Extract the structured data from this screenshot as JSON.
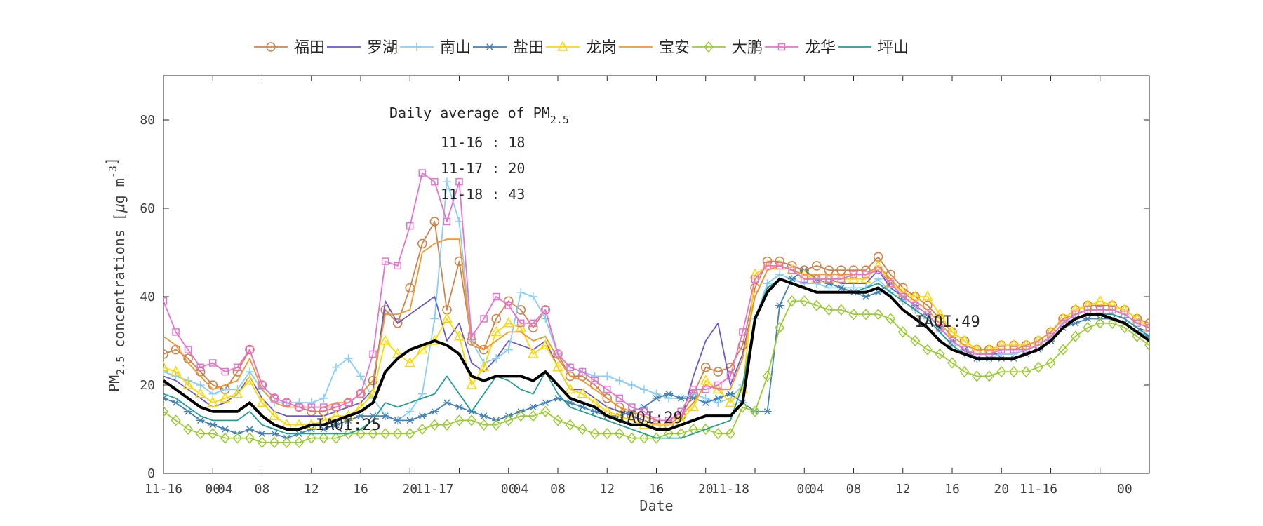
{
  "chart_data": {
    "type": "line",
    "x_tick_labels": [
      "11-16",
      "00",
      "04",
      "08",
      "12",
      "16",
      "20",
      "11-17",
      "00",
      "04",
      "08",
      "12",
      "16",
      "20",
      "11-18",
      "00",
      "04",
      "08",
      "12",
      "16",
      "20",
      "11-16",
      "00"
    ],
    "xlabel": "Date",
    "ylabel": "PM2.5 concentrations [μg m-3]",
    "ylabel_parts": {
      "pm": "PM",
      "sub": "2.5",
      "mid": " concentrations [",
      "mu": "μ",
      "unit": "g m",
      "sup": "-3",
      "close": "]"
    },
    "ylim": [
      0,
      90
    ],
    "xlim": [
      0,
      80
    ],
    "y_ticks": [
      0,
      20,
      40,
      60,
      80
    ],
    "annotations": {
      "title_prefix": "Daily average of PM",
      "title_sub": "2.5",
      "lines": [
        "11-16 : 18",
        "11-17 : 20",
        "11-18 : 43"
      ],
      "iaqi": [
        "IAQI:25",
        "IAQI:29",
        "IAQI:49"
      ]
    },
    "series": [
      {
        "name": "福田",
        "color": "#d0834a",
        "marker": "circle",
        "values": [
          27,
          28,
          26,
          23,
          20,
          19,
          23,
          28,
          20,
          17,
          16,
          15,
          14,
          14,
          15,
          16,
          18,
          21,
          37,
          34,
          42,
          52,
          57,
          37,
          48,
          30,
          28,
          35,
          39,
          37,
          33,
          37,
          27,
          22,
          22,
          20,
          17,
          15,
          13,
          12,
          11,
          11,
          13,
          18,
          24,
          23,
          24,
          29,
          42,
          48,
          48,
          47,
          46,
          47,
          46,
          46,
          46,
          46,
          49,
          45,
          42,
          40,
          38,
          35,
          32,
          30,
          28,
          28,
          29,
          29,
          29,
          30,
          32,
          35,
          37,
          38,
          38,
          38,
          37,
          35,
          34,
          36
        ]
      },
      {
        "name": "罗湖",
        "color": "#6a5acd",
        "marker": "none",
        "values": [
          22,
          21,
          19,
          17,
          15,
          16,
          18,
          22,
          17,
          14,
          13,
          13,
          13,
          13,
          14,
          15,
          16,
          19,
          39,
          34,
          36,
          38,
          40,
          30,
          34,
          25,
          23,
          26,
          30,
          29,
          28,
          30,
          24,
          19,
          19,
          17,
          15,
          14,
          13,
          12,
          11,
          11,
          12,
          22,
          30,
          34,
          20,
          27,
          40,
          46,
          47,
          46,
          44,
          44,
          44,
          43,
          43,
          43,
          46,
          42,
          40,
          38,
          36,
          33,
          30,
          28,
          27,
          27,
          27,
          27,
          28,
          29,
          31,
          34,
          35,
          36,
          36,
          36,
          35,
          33,
          32,
          33
        ]
      },
      {
        "name": "南山",
        "color": "#87cefa",
        "marker": "plus",
        "values": [
          23,
          22,
          21,
          20,
          18,
          19,
          19,
          23,
          19,
          16,
          16,
          16,
          16,
          17,
          24,
          26,
          22,
          17,
          13,
          12,
          14,
          18,
          35,
          66,
          57,
          30,
          25,
          26,
          28,
          41,
          40,
          35,
          27,
          24,
          23,
          22,
          22,
          21,
          20,
          19,
          18,
          17,
          17,
          18,
          17,
          16,
          17,
          20,
          35,
          43,
          45,
          44,
          43,
          43,
          42,
          42,
          42,
          42,
          44,
          41,
          39,
          37,
          35,
          32,
          29,
          27,
          26,
          26,
          27,
          27,
          28,
          29,
          31,
          34,
          36,
          37,
          37,
          37,
          36,
          34,
          33,
          34
        ]
      },
      {
        "name": "盐田",
        "color": "#4682b4",
        "marker": "asterisk",
        "values": [
          17,
          16,
          14,
          12,
          11,
          10,
          9,
          10,
          9,
          9,
          8,
          9,
          10,
          10,
          11,
          12,
          13,
          13,
          13,
          12,
          12,
          13,
          14,
          16,
          15,
          14,
          13,
          12,
          13,
          14,
          15,
          16,
          17,
          16,
          15,
          14,
          13,
          13,
          14,
          15,
          17,
          18,
          17,
          17,
          16,
          17,
          18,
          16,
          14,
          14,
          38,
          44,
          46,
          44,
          43,
          42,
          41,
          40,
          41,
          43,
          40,
          38,
          36,
          33,
          30,
          28,
          26,
          26,
          26,
          26,
          27,
          28,
          30,
          33,
          34,
          35,
          35,
          35,
          34,
          32,
          31,
          29
        ]
      },
      {
        "name": "龙岗",
        "color": "#ffd700",
        "marker": "triangle",
        "values": [
          24,
          23,
          20,
          18,
          16,
          17,
          18,
          21,
          16,
          13,
          11,
          11,
          11,
          12,
          13,
          13,
          15,
          18,
          30,
          27,
          25,
          28,
          30,
          35,
          31,
          20,
          24,
          32,
          34,
          33,
          27,
          29,
          24,
          19,
          18,
          16,
          14,
          13,
          12,
          11,
          11,
          11,
          12,
          15,
          21,
          19,
          16,
          19,
          45,
          47,
          47,
          46,
          45,
          44,
          44,
          44,
          44,
          44,
          47,
          43,
          41,
          40,
          40,
          36,
          32,
          30,
          28,
          28,
          29,
          29,
          29,
          30,
          32,
          35,
          37,
          38,
          39,
          38,
          37,
          35,
          33,
          33
        ]
      },
      {
        "name": "宝安",
        "color": "#f4962a",
        "marker": "none",
        "values": [
          31,
          29,
          25,
          22,
          19,
          20,
          21,
          26,
          19,
          16,
          15,
          15,
          15,
          15,
          16,
          16,
          18,
          21,
          36,
          36,
          37,
          50,
          52,
          53,
          53,
          29,
          28,
          30,
          32,
          32,
          30,
          31,
          26,
          22,
          21,
          19,
          17,
          15,
          14,
          13,
          12,
          12,
          13,
          16,
          20,
          19,
          19,
          26,
          40,
          46,
          47,
          46,
          45,
          45,
          45,
          45,
          45,
          45,
          47,
          44,
          41,
          39,
          37,
          34,
          31,
          29,
          28,
          28,
          28,
          28,
          29,
          30,
          32,
          35,
          36,
          37,
          37,
          37,
          36,
          34,
          33,
          34
        ]
      },
      {
        "name": "大鹏",
        "color": "#9acd32",
        "marker": "diamond",
        "values": [
          14,
          12,
          10,
          9,
          9,
          8,
          8,
          8,
          7,
          7,
          7,
          7,
          8,
          8,
          8,
          9,
          9,
          9,
          9,
          9,
          9,
          10,
          11,
          11,
          12,
          12,
          11,
          11,
          12,
          13,
          13,
          14,
          12,
          11,
          10,
          9,
          9,
          9,
          8,
          8,
          8,
          9,
          9,
          10,
          10,
          9,
          9,
          15,
          14,
          22,
          33,
          39,
          39,
          38,
          37,
          37,
          36,
          36,
          36,
          35,
          32,
          30,
          28,
          27,
          25,
          23,
          22,
          22,
          23,
          23,
          23,
          24,
          25,
          28,
          31,
          33,
          34,
          34,
          33,
          31,
          29,
          28
        ]
      },
      {
        "name": "龙华",
        "color": "#e872cf",
        "marker": "square",
        "values": [
          39,
          32,
          28,
          24,
          25,
          23,
          24,
          28,
          20,
          17,
          16,
          15,
          15,
          15,
          15,
          16,
          18,
          27,
          48,
          47,
          56,
          68,
          66,
          57,
          66,
          31,
          35,
          40,
          38,
          34,
          34,
          37,
          27,
          24,
          23,
          21,
          19,
          17,
          15,
          14,
          12,
          12,
          14,
          19,
          19,
          20,
          22,
          32,
          44,
          47,
          47,
          46,
          44,
          44,
          44,
          44,
          45,
          45,
          46,
          43,
          40,
          38,
          36,
          33,
          30,
          28,
          27,
          27,
          28,
          28,
          28,
          29,
          31,
          34,
          36,
          37,
          37,
          37,
          36,
          34,
          33,
          34
        ]
      },
      {
        "name": "坪山",
        "color": "#20a090",
        "marker": "none",
        "values": [
          18,
          17,
          15,
          13,
          12,
          12,
          12,
          14,
          11,
          10,
          9,
          9,
          9,
          9,
          9,
          9,
          10,
          12,
          16,
          15,
          16,
          17,
          18,
          22,
          18,
          14,
          18,
          22,
          21,
          19,
          18,
          23,
          18,
          15,
          14,
          13,
          12,
          11,
          10,
          9,
          8,
          8,
          8,
          9,
          10,
          11,
          12,
          20,
          35,
          42,
          44,
          43,
          42,
          41,
          41,
          41,
          41,
          42,
          43,
          41,
          39,
          37,
          35,
          32,
          29,
          27,
          26,
          26,
          26,
          26,
          27,
          28,
          30,
          33,
          35,
          36,
          36,
          36,
          35,
          33,
          31,
          29
        ]
      },
      {
        "name": "",
        "color": "#000000",
        "marker": "none",
        "values": [
          21,
          19,
          17,
          15,
          14,
          14,
          14,
          16,
          13,
          11,
          10,
          10,
          11,
          11,
          12,
          13,
          14,
          16,
          23,
          26,
          28,
          29,
          30,
          29,
          27,
          22,
          21,
          22,
          22,
          22,
          21,
          23,
          20,
          17,
          16,
          15,
          13,
          12,
          11,
          11,
          10,
          10,
          11,
          12,
          13,
          13,
          13,
          16,
          35,
          41,
          44,
          43,
          42,
          41,
          41,
          41,
          41,
          41,
          42,
          40,
          37,
          35,
          33,
          30,
          28,
          27,
          26,
          26,
          26,
          26,
          27,
          28,
          30,
          33,
          35,
          36,
          36,
          35,
          34,
          32,
          30,
          30
        ]
      }
    ]
  }
}
